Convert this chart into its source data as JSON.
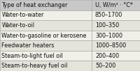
{
  "headers": [
    "Type of heat exchanger",
    "U, W/m² · °C*"
  ],
  "rows": [
    [
      "Water-to-water",
      "850–1700"
    ],
    [
      "Water-to-oil",
      "100–350"
    ],
    [
      "Water-to-gasoline or kerosene",
      "300–1000"
    ],
    [
      "Feedwater heaters",
      "1000–8500"
    ],
    [
      "Steam-to-light fuel oil",
      "200–400"
    ],
    [
      "Steam-to-heavy fuel oil",
      "50–200"
    ]
  ],
  "header_bg": "#c8c8c8",
  "row_bg_light": "#f0f0e8",
  "row_bg_mid": "#e4e4da",
  "border_color": "#aaaaaa",
  "text_color": "#111111",
  "col_split": 0.655,
  "font_size": 5.8,
  "fig_bg": "#f0f0e8"
}
